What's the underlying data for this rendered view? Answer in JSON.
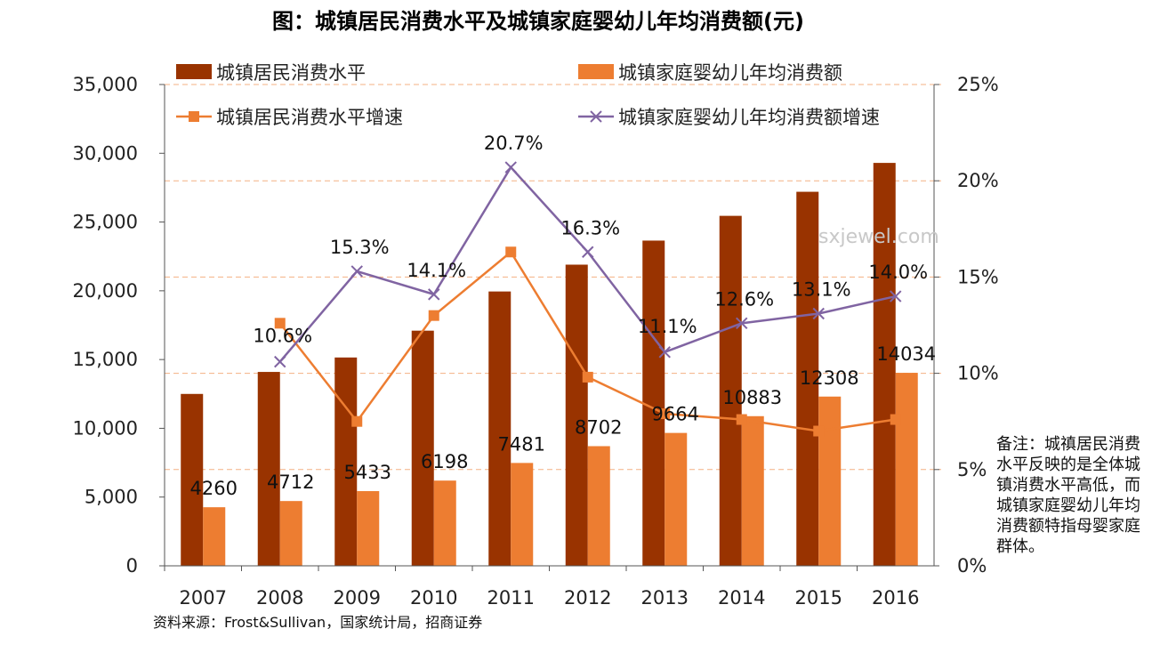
{
  "chart_data": {
    "type": "bar",
    "title": "图：城镇居民消费水平及城镇家庭婴幼儿年均消费额(元)",
    "categories": [
      "2007",
      "2008",
      "2009",
      "2010",
      "2011",
      "2012",
      "2013",
      "2014",
      "2015",
      "2016"
    ],
    "series": [
      {
        "name": "城镇居民消费水平",
        "type": "bar",
        "axis": "left",
        "color": "#993300",
        "values": [
          12500,
          14100,
          15150,
          17100,
          19950,
          21900,
          23650,
          25450,
          27200,
          29300
        ]
      },
      {
        "name": "城镇家庭婴幼儿年均消费额",
        "type": "bar",
        "axis": "left",
        "color": "#ED7D31",
        "values": [
          4260,
          4712,
          5433,
          6198,
          7481,
          8702,
          9664,
          10883,
          12308,
          14034
        ],
        "labels": [
          "4260",
          "4712",
          "5433",
          "6198",
          "7481",
          "8702",
          "9664",
          "10883",
          "12308",
          "14034"
        ]
      },
      {
        "name": "城镇居民消费水平增速",
        "type": "line",
        "axis": "right",
        "color": "#ED7D31",
        "marker": "square",
        "values": [
          null,
          12.6,
          7.5,
          13.0,
          16.3,
          9.8,
          7.9,
          7.6,
          7.0,
          7.6
        ]
      },
      {
        "name": "城镇家庭婴幼儿年均消费额增速",
        "type": "line",
        "axis": "right",
        "color": "#8064A2",
        "marker": "x",
        "values": [
          null,
          10.6,
          15.3,
          14.1,
          20.7,
          16.3,
          11.1,
          12.6,
          13.1,
          14.0
        ],
        "labels": [
          null,
          "10.6%",
          "15.3%",
          "14.1%",
          "20.7%",
          "16.3%",
          "11.1%",
          "12.6%",
          "13.1%",
          "14.0%"
        ]
      }
    ],
    "y_left": {
      "min": 0,
      "max": 35000,
      "ticks": [
        "0",
        "5,000",
        "10,000",
        "15,000",
        "20,000",
        "25,000",
        "30,000",
        "35,000"
      ]
    },
    "y_right": {
      "min": 0,
      "max": 25,
      "ticks": [
        "0%",
        "5%",
        "10%",
        "15%",
        "20%",
        "25%"
      ]
    },
    "legend_position": "top"
  },
  "note": "备注：城禛居民消费水平反映的是全体城镇消费水平高低，而城镇家庭婴幼儿年均消费额特指母婴家庭群体。",
  "source": "资料来源：Frost&Sullivan，国家统计局，招商证券",
  "watermark": "sxjewel.com"
}
